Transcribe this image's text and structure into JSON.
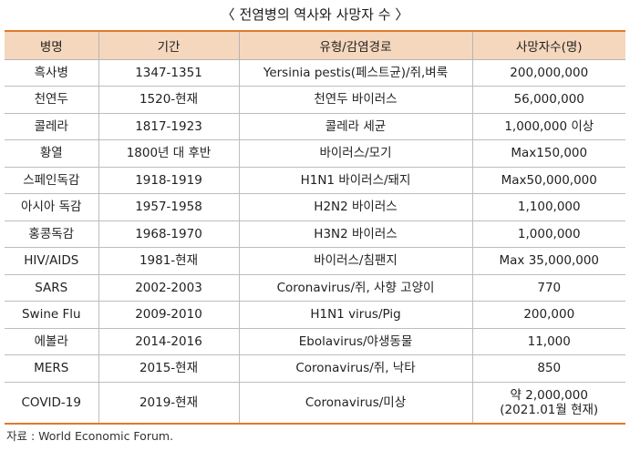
{
  "title": "〈 전염병의 역사와 사망자 수 〉",
  "table": {
    "headers": [
      "병명",
      "기간",
      "유형/감염경로",
      "사망자수(명)"
    ],
    "rows": [
      [
        "흑사병",
        "1347-1351",
        "Yersinia pestis(페스트균)/쥐,벼룩",
        "200,000,000"
      ],
      [
        "천연두",
        "1520-현재",
        "천연두 바이러스",
        "56,000,000"
      ],
      [
        "콜레라",
        "1817-1923",
        "콜레라 세균",
        "1,000,000 이상"
      ],
      [
        "황열",
        "1800년 대 후반",
        "바이러스/모기",
        "Max150,000"
      ],
      [
        "스페인독감",
        "1918-1919",
        "H1N1 바이러스/돼지",
        "Max50,000,000"
      ],
      [
        "아시아 독감",
        "1957-1958",
        "H2N2 바이러스",
        "1,100,000"
      ],
      [
        "홍콩독감",
        "1968-1970",
        "H3N2 바이러스",
        "1,000,000"
      ],
      [
        "HIV/AIDS",
        "1981-현재",
        "바이러스/침팬지",
        "Max 35,000,000"
      ],
      [
        "SARS",
        "2002-2003",
        "Coronavirus/쥐, 사향 고양이",
        "770"
      ],
      [
        "Swine Flu",
        "2009-2010",
        "H1N1 virus/Pig",
        "200,000"
      ],
      [
        "에볼라",
        "2014-2016",
        "Ebolavirus/야생동물",
        "11,000"
      ],
      [
        "MERS",
        "2015-현재",
        "Coronavirus/쥐, 낙타",
        "850"
      ]
    ],
    "last_row": {
      "disease": "COVID-19",
      "period": "2019-현재",
      "type": "Coronavirus/미상",
      "deaths_line1": "약 2,000,000",
      "deaths_line2": "(2021.01월 현재)"
    }
  },
  "source": "자료 : World Economic Forum."
}
